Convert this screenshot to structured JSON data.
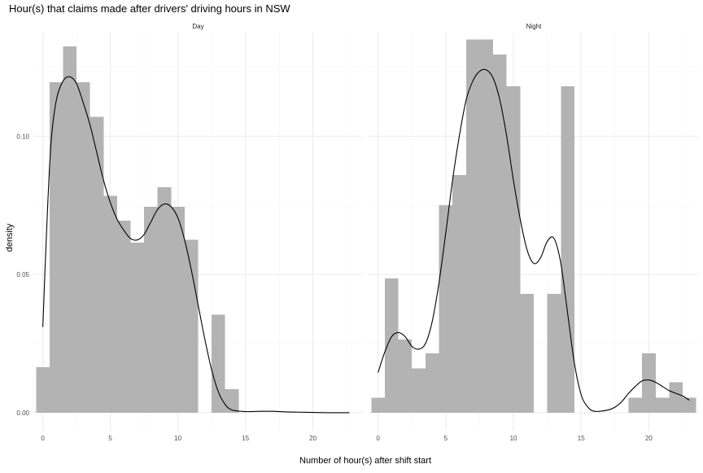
{
  "chart_data": {
    "type": "histogram+density",
    "title": "Hour(s) that claims made after drivers' driving hours in NSW",
    "xlabel": "Number of hour(s) after shift start",
    "ylabel": "density",
    "grid": true,
    "bar_color": "#b3b3b3",
    "line_color": "#000000",
    "grid_major_color": "#ebebeb",
    "grid_minor_color": "#f5f5f5",
    "xlim": [
      -0.7,
      23.7
    ],
    "ylim": [
      -0.0065,
      0.1375
    ],
    "y_ticks": [
      0.0,
      0.05,
      0.1
    ],
    "y_tick_labels": [
      "0.00",
      "0.05",
      "0.10"
    ],
    "panels": [
      {
        "name": "Day",
        "x_ticks": [
          0,
          5,
          10,
          15,
          20
        ],
        "x_tick_labels": [
          "0",
          "5",
          "10",
          "15",
          "20"
        ],
        "bins": [
          {
            "center": 0,
            "density": 0.0165
          },
          {
            "center": 1,
            "density": 0.1195
          },
          {
            "center": 2,
            "density": 0.1325
          },
          {
            "center": 3,
            "density": 0.1195
          },
          {
            "center": 4,
            "density": 0.107
          },
          {
            "center": 5,
            "density": 0.0785
          },
          {
            "center": 6,
            "density": 0.0695
          },
          {
            "center": 7,
            "density": 0.0615
          },
          {
            "center": 8,
            "density": 0.0745
          },
          {
            "center": 9,
            "density": 0.0815
          },
          {
            "center": 10,
            "density": 0.0745
          },
          {
            "center": 11,
            "density": 0.0625
          },
          {
            "center": 12,
            "density": 0.0
          },
          {
            "center": 13,
            "density": 0.0355
          },
          {
            "center": 14,
            "density": 0.0085
          },
          {
            "center": 15,
            "density": 0.0
          },
          {
            "center": 16,
            "density": 0.0
          },
          {
            "center": 17,
            "density": 0.0
          },
          {
            "center": 18,
            "density": 0.0
          },
          {
            "center": 19,
            "density": 0.0
          },
          {
            "center": 20,
            "density": 0.0
          },
          {
            "center": 21,
            "density": 0.0
          },
          {
            "center": 22,
            "density": 0.0
          },
          {
            "center": 23,
            "density": 0.0
          }
        ],
        "density_curve": [
          [
            0,
            0.031
          ],
          [
            0.3,
            0.068
          ],
          [
            0.6,
            0.097
          ],
          [
            1,
            0.113
          ],
          [
            1.5,
            0.12
          ],
          [
            2,
            0.1215
          ],
          [
            2.5,
            0.119
          ],
          [
            3,
            0.112
          ],
          [
            3.5,
            0.104
          ],
          [
            4,
            0.094
          ],
          [
            4.5,
            0.084
          ],
          [
            5,
            0.076
          ],
          [
            5.5,
            0.07
          ],
          [
            6,
            0.066
          ],
          [
            6.5,
            0.063
          ],
          [
            7,
            0.0625
          ],
          [
            7.5,
            0.0645
          ],
          [
            8,
            0.069
          ],
          [
            8.5,
            0.0735
          ],
          [
            9,
            0.0755
          ],
          [
            9.5,
            0.0745
          ],
          [
            10,
            0.0705
          ],
          [
            10.5,
            0.0625
          ],
          [
            11,
            0.0515
          ],
          [
            11.5,
            0.039
          ],
          [
            12,
            0.0265
          ],
          [
            12.5,
            0.0155
          ],
          [
            13,
            0.0075
          ],
          [
            13.5,
            0.003
          ],
          [
            14,
            0.001
          ],
          [
            15,
            0.0004
          ],
          [
            16,
            0.0005
          ],
          [
            17,
            0.0005
          ],
          [
            18,
            0.0003
          ],
          [
            19,
            0.0002
          ],
          [
            20,
            0.0001
          ],
          [
            21,
            0.0
          ],
          [
            22.7,
            0.0
          ]
        ]
      },
      {
        "name": "Night",
        "x_ticks": [
          0,
          5,
          10,
          15,
          20
        ],
        "x_tick_labels": [
          "0",
          "5",
          "10",
          "15",
          "20"
        ],
        "bins": [
          {
            "center": 0,
            "density": 0.0055
          },
          {
            "center": 1,
            "density": 0.0485
          },
          {
            "center": 2,
            "density": 0.0265
          },
          {
            "center": 3,
            "density": 0.016
          },
          {
            "center": 4,
            "density": 0.0215
          },
          {
            "center": 5,
            "density": 0.075
          },
          {
            "center": 6,
            "density": 0.086
          },
          {
            "center": 7,
            "density": 0.135
          },
          {
            "center": 8,
            "density": 0.135
          },
          {
            "center": 9,
            "density": 0.1295
          },
          {
            "center": 10,
            "density": 0.118
          },
          {
            "center": 11,
            "density": 0.043
          },
          {
            "center": 12,
            "density": 0.0
          },
          {
            "center": 13,
            "density": 0.043
          },
          {
            "center": 14,
            "density": 0.118
          },
          {
            "center": 15,
            "density": 0.0
          },
          {
            "center": 16,
            "density": 0.0
          },
          {
            "center": 17,
            "density": 0.0
          },
          {
            "center": 18,
            "density": 0.0
          },
          {
            "center": 19,
            "density": 0.0055
          },
          {
            "center": 20,
            "density": 0.0215
          },
          {
            "center": 21,
            "density": 0.0055
          },
          {
            "center": 22,
            "density": 0.011
          },
          {
            "center": 23,
            "density": 0.0055
          }
        ],
        "density_curve": [
          [
            0,
            0.0145
          ],
          [
            0.5,
            0.022
          ],
          [
            1,
            0.0275
          ],
          [
            1.5,
            0.029
          ],
          [
            2,
            0.0275
          ],
          [
            2.5,
            0.024
          ],
          [
            3,
            0.023
          ],
          [
            3.5,
            0.025
          ],
          [
            4,
            0.033
          ],
          [
            4.5,
            0.047
          ],
          [
            5,
            0.065
          ],
          [
            5.5,
            0.084
          ],
          [
            6,
            0.1
          ],
          [
            6.5,
            0.113
          ],
          [
            7,
            0.12
          ],
          [
            7.5,
            0.1235
          ],
          [
            8,
            0.124
          ],
          [
            8.5,
            0.121
          ],
          [
            9,
            0.113
          ],
          [
            9.5,
            0.1
          ],
          [
            10,
            0.084
          ],
          [
            10.5,
            0.07
          ],
          [
            11,
            0.059
          ],
          [
            11.5,
            0.054
          ],
          [
            12,
            0.056
          ],
          [
            12.5,
            0.062
          ],
          [
            13,
            0.063
          ],
          [
            13.5,
            0.054
          ],
          [
            14,
            0.036
          ],
          [
            14.5,
            0.018
          ],
          [
            15,
            0.0065
          ],
          [
            15.5,
            0.002
          ],
          [
            16,
            0.0005
          ],
          [
            17,
            0.001
          ],
          [
            17.5,
            0.002
          ],
          [
            18,
            0.004
          ],
          [
            18.5,
            0.007
          ],
          [
            19,
            0.0095
          ],
          [
            19.5,
            0.0115
          ],
          [
            20,
            0.0118
          ],
          [
            20.5,
            0.011
          ],
          [
            21,
            0.0095
          ],
          [
            21.5,
            0.008
          ],
          [
            22,
            0.007
          ],
          [
            22.5,
            0.006
          ],
          [
            23,
            0.0045
          ]
        ]
      }
    ]
  }
}
